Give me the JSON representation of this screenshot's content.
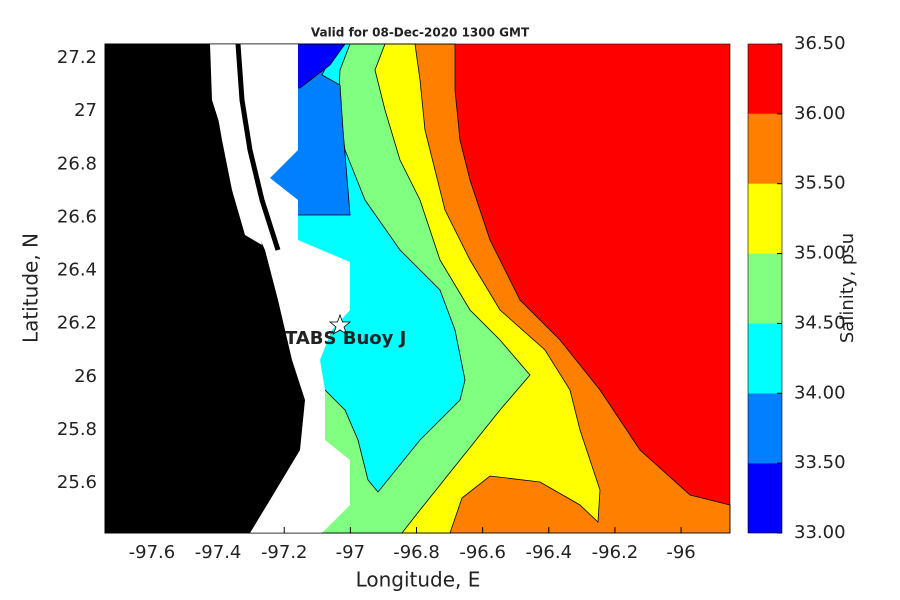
{
  "title": "Valid for 08-Dec-2020 1300 GMT",
  "xlabel": "Longitude, E",
  "ylabel": "Latitude, N",
  "xlim": [
    -97.742,
    -95.852
  ],
  "ylim": [
    25.412,
    27.253
  ],
  "xticks": [
    -97.6,
    -97.4,
    -97.2,
    -97,
    -96.8,
    -96.6,
    -96.4,
    -96.2,
    -96
  ],
  "yticks": [
    25.6,
    25.8,
    26,
    26.2,
    26.4,
    26.6,
    26.8,
    27,
    27.2
  ],
  "annotation": "TABS Buoy J",
  "colorbar": {
    "label": "Salinity, psu",
    "ticks": [
      {
        "value": 33,
        "label": "33.00"
      },
      {
        "value": 33.5,
        "label": "33.50"
      },
      {
        "value": 34,
        "label": "34.00"
      },
      {
        "value": 34.5,
        "label": "34.50"
      },
      {
        "value": 35,
        "label": "35.00"
      },
      {
        "value": 35.5,
        "label": "35.50"
      },
      {
        "value": 36,
        "label": "36.00"
      },
      {
        "value": 36.5,
        "label": "36.50"
      }
    ],
    "colors": [
      "#0000ff",
      "#0080ff",
      "#00ffff",
      "#80ff80",
      "#ffff00",
      "#ff8000",
      "#ff0000"
    ]
  }
}
